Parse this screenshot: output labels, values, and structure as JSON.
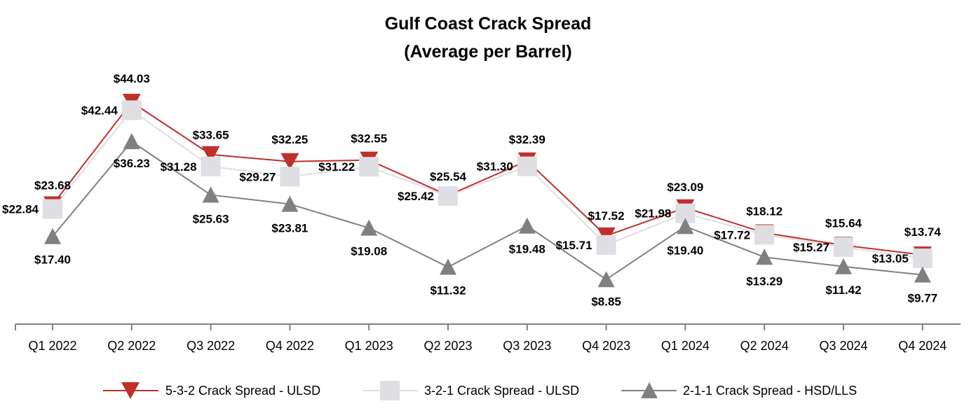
{
  "chart_data": {
    "type": "line",
    "title": [
      "Gulf Coast Crack Spread",
      "(Average per Barrel)"
    ],
    "categories": [
      "Q1 2022",
      "Q2 2022",
      "Q3 2022",
      "Q4 2022",
      "Q1 2023",
      "Q2 2023",
      "Q3 2023",
      "Q4 2023",
      "Q1 2024",
      "Q2 2024",
      "Q3 2024",
      "Q4 2024"
    ],
    "ylim": [
      0,
      50
    ],
    "grid": false,
    "xlabel": "",
    "ylabel": "",
    "legend_position": "bottom",
    "series": [
      {
        "name": "5-3-2 Crack Spread - ULSD",
        "marker": "triangle-down",
        "color": "#c0302b",
        "values": [
          23.68,
          44.03,
          33.65,
          32.25,
          32.55,
          25.54,
          32.39,
          17.52,
          23.09,
          18.12,
          15.64,
          13.74
        ],
        "labels": [
          "$23.68",
          "$44.03",
          "$33.65",
          "$32.25",
          "$32.55",
          "$25.54",
          "$32.39",
          "$17.52",
          "$23.09",
          "$18.12",
          "$15.64",
          "$13.74"
        ]
      },
      {
        "name": "3-2-1 Crack Spread - ULSD",
        "marker": "square",
        "color": "#dedee3",
        "values": [
          22.84,
          42.44,
          31.28,
          29.27,
          31.22,
          25.42,
          31.3,
          15.71,
          21.98,
          17.72,
          15.27,
          13.05
        ],
        "labels": [
          "$22.84",
          "$42.44",
          "$31.28",
          "$29.27",
          "$31.22",
          "$25.42",
          "$31.30",
          "$15.71",
          "$21.98",
          "$17.72",
          "$15.27",
          "$13.05"
        ]
      },
      {
        "name": "2-1-1 Crack Spread - HSD/LLS",
        "marker": "triangle-up",
        "color": "#808080",
        "values": [
          17.4,
          36.23,
          25.63,
          23.81,
          19.08,
          11.32,
          19.48,
          8.85,
          19.4,
          13.29,
          11.42,
          9.77
        ],
        "labels": [
          "$17.40",
          "$36.23",
          "$25.63",
          "$23.81",
          "$19.08",
          "$11.32",
          "$19.48",
          "$8.85",
          "$19.40",
          "$13.29",
          "$11.42",
          "$9.77"
        ]
      }
    ]
  }
}
